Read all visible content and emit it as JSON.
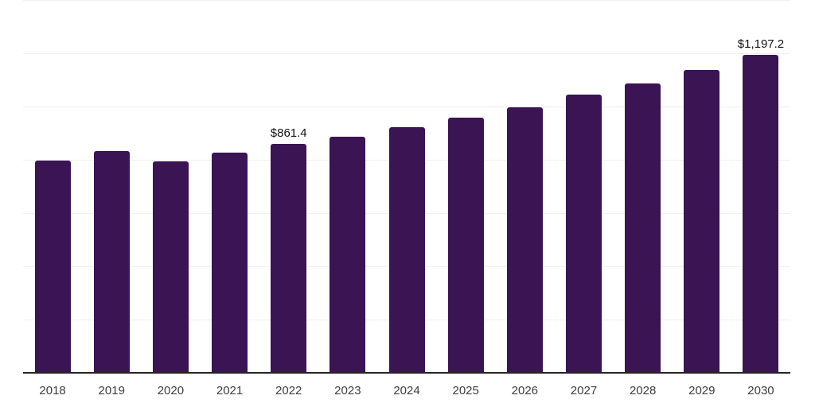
{
  "chart": {
    "bar_color": "#3A1453",
    "grid_color": "#F0F0F0",
    "axis_color": "#262626",
    "tick_label_color": "#3D3D3D",
    "data_label_color": "#111111",
    "background_color": "#FFFFFF"
  },
  "chart_data": {
    "type": "bar",
    "categories": [
      "2018",
      "2019",
      "2020",
      "2021",
      "2022",
      "2023",
      "2024",
      "2025",
      "2026",
      "2027",
      "2028",
      "2029",
      "2030"
    ],
    "values": [
      799,
      836,
      797,
      830,
      861.4,
      891,
      924,
      962,
      1001,
      1047,
      1090,
      1141,
      1197.2
    ],
    "point_labels": [
      null,
      null,
      null,
      null,
      "$861.4",
      null,
      null,
      null,
      null,
      null,
      null,
      null,
      "$1,197.2"
    ],
    "title": "",
    "xlabel": "",
    "ylabel": "",
    "ylim": [
      0,
      1400
    ],
    "gridline_values": [
      200,
      400,
      600,
      800,
      1000,
      1200,
      1400
    ],
    "grid": "horizontal",
    "legend_position": "none",
    "bar_corner_radius": 3
  }
}
